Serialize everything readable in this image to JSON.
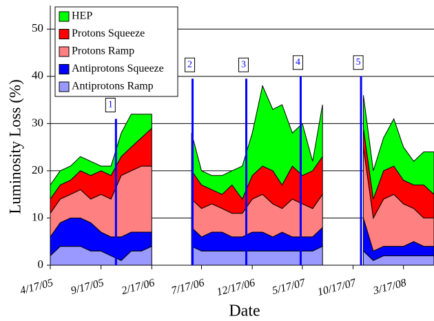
{
  "chart_data": {
    "type": "stacked_area",
    "xlabel": "Date",
    "ylabel": "Luminosity Loss (%)",
    "x": [
      "4/17/05",
      "5/17/05",
      "6/17/05",
      "7/17/05",
      "8/17/05",
      "9/17/05",
      "10/17/05",
      "11/17/05",
      "12/17/05",
      "1/17/06",
      "2/17/06",
      "3/17/06",
      "4/17/06",
      "5/17/06",
      "6/17/06",
      "7/17/06",
      "8/17/06",
      "9/17/06",
      "10/17/06",
      "11/17/06",
      "12/17/06",
      "1/17/07",
      "2/17/07",
      "3/17/07",
      "4/17/07",
      "5/17/07",
      "6/17/07",
      "7/17/07",
      "8/17/07",
      "9/17/07",
      "10/17/07",
      "11/17/07",
      "12/17/07",
      "1/17/08",
      "2/17/08",
      "3/17/08",
      "4/17/08",
      "5/17/08",
      "6/17/08"
    ],
    "series": [
      {
        "name": "HEP",
        "color": "#00ff00",
        "values": [
          3,
          3,
          3,
          3,
          3,
          1,
          2,
          5,
          7,
          5,
          3,
          null,
          null,
          null,
          8,
          3,
          3,
          4,
          3,
          7,
          9,
          17,
          13,
          17,
          7,
          11,
          2,
          11,
          null,
          null,
          null,
          7,
          6,
          7,
          10,
          7,
          5,
          7,
          9
        ]
      },
      {
        "name": "Protons Squeeze",
        "color": "#ff0000",
        "values": [
          3,
          3,
          3,
          4,
          5,
          5,
          5,
          4,
          5,
          6,
          8,
          null,
          null,
          null,
          6,
          5,
          3,
          3,
          6,
          3,
          5,
          6,
          7,
          5,
          7,
          6,
          8,
          8,
          null,
          null,
          null,
          4,
          4,
          6,
          6,
          5,
          5,
          7,
          5
        ]
      },
      {
        "name": "Protons Ramp",
        "color": "#ff8080",
        "values": [
          5,
          5,
          5,
          6,
          5,
          8,
          8,
          13,
          13,
          14,
          14,
          null,
          null,
          null,
          6,
          6,
          6,
          5,
          5,
          5,
          7,
          8,
          7,
          5,
          8,
          7,
          6,
          7,
          null,
          null,
          null,
          15,
          7,
          10,
          11,
          9,
          7,
          6,
          6
        ]
      },
      {
        "name": "Antiprotons Squeeze",
        "color": "#0000ff",
        "values": [
          4,
          5,
          6,
          6,
          6,
          4,
          4,
          5,
          4,
          4,
          3,
          null,
          null,
          null,
          4,
          3,
          4,
          4,
          3,
          3,
          4,
          4,
          3,
          4,
          3,
          3,
          3,
          4,
          null,
          null,
          null,
          7,
          2,
          2,
          2,
          2,
          3,
          2,
          2
        ]
      },
      {
        "name": "Antiprotons Ramp",
        "color": "#9999ff",
        "values": [
          2,
          4,
          4,
          4,
          3,
          3,
          2,
          1,
          3,
          3,
          4,
          null,
          null,
          null,
          4,
          3,
          3,
          3,
          3,
          3,
          3,
          3,
          3,
          3,
          3,
          3,
          3,
          4,
          null,
          null,
          null,
          3,
          1,
          2,
          2,
          2,
          2,
          2,
          2
        ]
      }
    ],
    "annotations": [
      {
        "label": "1",
        "x": "11/1/05",
        "y": 31
      },
      {
        "label": "2",
        "x": "6/20/06",
        "y": 39.5
      },
      {
        "label": "3",
        "x": "11/29/06",
        "y": 39.5
      },
      {
        "label": "4",
        "x": "5/12/07",
        "y": 40
      },
      {
        "label": "5",
        "x": "11/10/07",
        "y": 40
      }
    ],
    "annotation_color": "#0000ff",
    "xlim": [
      "4/17/05",
      "6/17/08"
    ],
    "xticks": [
      "4/17/05",
      "9/17/05",
      "2/17/06",
      "7/17/06",
      "12/17/06",
      "5/17/07",
      "10/17/07",
      "3/17/08"
    ],
    "ylim": [
      0,
      55
    ],
    "yticks": [
      0,
      10,
      20,
      30,
      40,
      50
    ],
    "grid": true,
    "legend": "upper left"
  }
}
